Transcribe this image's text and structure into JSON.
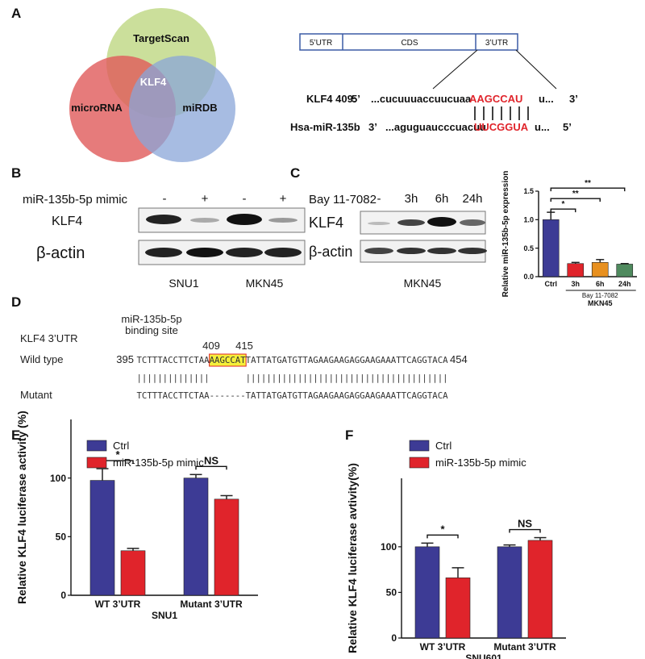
{
  "panel_labels": [
    "A",
    "B",
    "C",
    "D",
    "E",
    "F"
  ],
  "venn": {
    "sets": [
      "TargetScan",
      "microRNA",
      "miRDB"
    ],
    "intersection": "KLF4"
  },
  "utr": {
    "segments": [
      "5’UTR",
      "CDS",
      "3’UTR"
    ],
    "target": {
      "name": "KLF4 409:",
      "end5": "5’",
      "seq": "...cucuuuaccuucuaa",
      "site": "AAGCCAU",
      "tail": "u...",
      "end3": "3’"
    },
    "mirna": {
      "name": "Hsa-miR-135b",
      "end3": "3’",
      "seq": "...aguguaucccuacuu",
      "site": "UUCGGUA",
      "tail": "u...",
      "end5": "5’"
    }
  },
  "blot_b": {
    "treatment": "miR-135b-5p mimic",
    "lanes": [
      "-",
      "+",
      "-",
      "+"
    ],
    "rows": [
      "KLF4",
      "β-actin"
    ],
    "cell_lines": [
      "SNU1",
      "MKN45"
    ]
  },
  "blot_c": {
    "treatment": "Bay 11-7082",
    "lanes": [
      "-",
      "3h",
      "6h",
      "24h"
    ],
    "rows": [
      "KLF4",
      "β-actin"
    ],
    "cell_line": "MKN45"
  },
  "sequence": {
    "title": "KLF4 3’UTR",
    "site_label": [
      "miR-135b-5p",
      "binding site"
    ],
    "site_start": 409,
    "site_end": 415,
    "wild_label": "Wild type",
    "wild_start": 395,
    "wild_end": 454,
    "wild_pre": "TCTTTACCTTCTAA",
    "wild_site": "AAGCCAT",
    "wild_post": "TATTATGATGTTAGAAGAAGAGGAAGAAATTCAGGTACA",
    "pipes": "||||||||||||||       |||||||||||||||||||||||||||||||||||||||",
    "mutant_label": "Mutant",
    "mutant_seq": "TCTTTACCTTCTAA-------TATTATGATGTTAGAAGAAGAGGAAGAAATTCAGGTACA"
  },
  "chart_data": [
    {
      "type": "bar",
      "ylabel": "Relative miR-135b-5p expression",
      "categories": [
        "Ctrl",
        "3h",
        "6h",
        "24h"
      ],
      "group_label": "Bay 11-7082",
      "xlabel": "MKN45",
      "values": [
        1.0,
        0.23,
        0.25,
        0.22
      ],
      "errors": [
        0.13,
        0.02,
        0.05,
        0.01
      ],
      "colors": [
        "#3d3b95",
        "#e0242b",
        "#e8901f",
        "#4f8a5e"
      ],
      "significance": [
        "*",
        "**",
        "**"
      ],
      "ylim": [
        0,
        1.5
      ],
      "yticks": [
        {
          "value": 0,
          "label": "0.0"
        },
        0.5,
        {
          "value": 1,
          "label": "1.0"
        },
        1.5
      ]
    },
    {
      "type": "bar",
      "ylabel": "Relative KLF4 luciferase activity (%)",
      "categories": [
        "WT 3’UTR",
        "Mutant 3’UTR"
      ],
      "xlabel": "SNU1",
      "series": [
        {
          "name": "Ctrl",
          "color": "#3d3b95",
          "values": [
            98,
            100
          ],
          "errors": [
            10,
            3
          ]
        },
        {
          "name": "miR-135b-5p mimic",
          "color": "#e0242b",
          "values": [
            38,
            82
          ],
          "errors": [
            2,
            3
          ]
        }
      ],
      "significance": [
        "*",
        "NS"
      ],
      "ylim": [
        0,
        150
      ],
      "yticks": [
        0,
        50,
        100
      ]
    },
    {
      "type": "bar",
      "ylabel": "Relative KLF4 luciferase avtivity(%)",
      "categories": [
        "WT 3’UTR",
        "Mutant 3’UTR"
      ],
      "xlabel": "SNU601",
      "series": [
        {
          "name": "Ctrl",
          "color": "#3d3b95",
          "values": [
            100,
            100
          ],
          "errors": [
            4,
            2
          ]
        },
        {
          "name": "miR-135b-5p mimic",
          "color": "#e0242b",
          "values": [
            66,
            107
          ],
          "errors": [
            11,
            3
          ]
        }
      ],
      "significance": [
        "*",
        "NS"
      ],
      "ylim": [
        0,
        175
      ],
      "yticks": [
        0,
        50,
        100
      ]
    }
  ]
}
